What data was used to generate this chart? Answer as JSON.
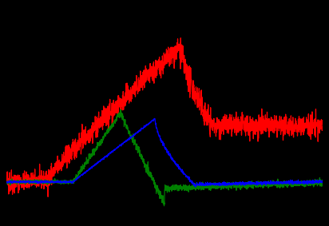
{
  "background_color": "#000000",
  "line_colors": [
    "red",
    "green",
    "blue"
  ],
  "figsize": [
    4.12,
    2.83
  ],
  "dpi": 100,
  "axes_bg": "#000000",
  "red_noise": 0.012,
  "green_noise": 0.006,
  "blue_noise": 0.003,
  "ylim": [
    -0.12,
    1.05
  ],
  "xlim": [
    0,
    1
  ]
}
